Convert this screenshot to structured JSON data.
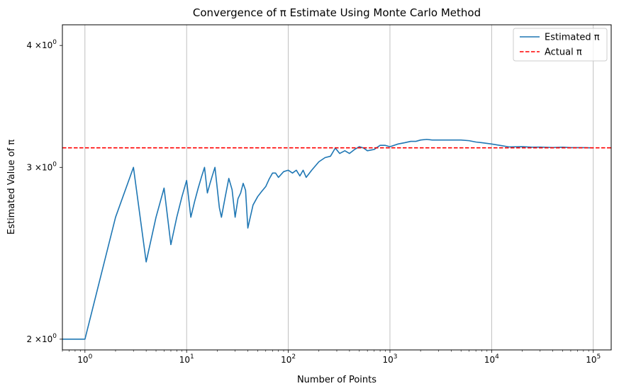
{
  "chart_data": {
    "type": "line",
    "title": "Convergence of π Estimate Using Monte Carlo Method",
    "xlabel": "Number of Points",
    "ylabel": "Estimated Value of π",
    "xscale": "log",
    "yscale": "log",
    "xlim": [
      0.6,
      150000
    ],
    "ylim": [
      1.95,
      4.2
    ],
    "grid": "x-major",
    "legend_position": "top-right",
    "x_ticks": [
      {
        "value": 1,
        "base": "10",
        "exp": "0"
      },
      {
        "value": 10,
        "base": "10",
        "exp": "1"
      },
      {
        "value": 100,
        "base": "10",
        "exp": "2"
      },
      {
        "value": 1000,
        "base": "10",
        "exp": "3"
      },
      {
        "value": 10000,
        "base": "10",
        "exp": "4"
      },
      {
        "value": 100000,
        "base": "10",
        "exp": "5"
      }
    ],
    "y_ticks": [
      {
        "value": 2,
        "mant": "2",
        "base": "×10",
        "exp": "0"
      },
      {
        "value": 3,
        "mant": "3",
        "base": "×10",
        "exp": "0"
      },
      {
        "value": 4,
        "mant": "4",
        "base": "×10",
        "exp": "0"
      }
    ],
    "series": [
      {
        "name": "Estimated π",
        "color": "#1f77b4",
        "style": "solid",
        "x": [
          0.6,
          1,
          2,
          3,
          4,
          5,
          6,
          7,
          8,
          9,
          10,
          11,
          12,
          13,
          14,
          15,
          16,
          17,
          18,
          19,
          20,
          21,
          22,
          24,
          26,
          28,
          30,
          32,
          34,
          36,
          38,
          40,
          45,
          50,
          55,
          60,
          65,
          70,
          75,
          80,
          90,
          100,
          110,
          120,
          130,
          140,
          150,
          170,
          200,
          230,
          260,
          290,
          320,
          360,
          400,
          450,
          500,
          550,
          600,
          700,
          800,
          900,
          1000,
          1200,
          1400,
          1600,
          1800,
          2000,
          2300,
          2600,
          3000,
          3500,
          4000,
          5000,
          6000,
          7000,
          8000,
          10000,
          12000,
          15000,
          20000,
          25000,
          30000,
          40000,
          50000,
          60000,
          80000,
          100000
        ],
        "y": [
          2.0,
          2.0,
          2.667,
          3.0,
          2.4,
          2.667,
          2.857,
          2.5,
          2.667,
          2.8,
          2.909,
          2.667,
          2.769,
          2.857,
          2.933,
          3.0,
          2.824,
          2.889,
          2.947,
          3.0,
          2.857,
          2.727,
          2.667,
          2.8,
          2.923,
          2.846,
          2.667,
          2.786,
          2.824,
          2.889,
          2.842,
          2.6,
          2.745,
          2.8,
          2.836,
          2.867,
          2.92,
          2.96,
          2.96,
          2.93,
          2.97,
          2.98,
          2.96,
          2.98,
          2.94,
          2.98,
          2.93,
          2.98,
          3.04,
          3.07,
          3.08,
          3.14,
          3.1,
          3.12,
          3.1,
          3.13,
          3.15,
          3.14,
          3.12,
          3.13,
          3.16,
          3.16,
          3.15,
          3.17,
          3.18,
          3.19,
          3.19,
          3.2,
          3.205,
          3.2,
          3.2,
          3.2,
          3.2,
          3.2,
          3.195,
          3.185,
          3.18,
          3.17,
          3.16,
          3.148,
          3.15,
          3.146,
          3.147,
          3.144,
          3.146,
          3.143,
          3.143,
          3.141
        ]
      },
      {
        "name": "Actual π",
        "color": "#ff0000",
        "style": "dashed",
        "x": [
          0.6,
          150000
        ],
        "y": [
          3.14159,
          3.14159
        ]
      }
    ]
  }
}
